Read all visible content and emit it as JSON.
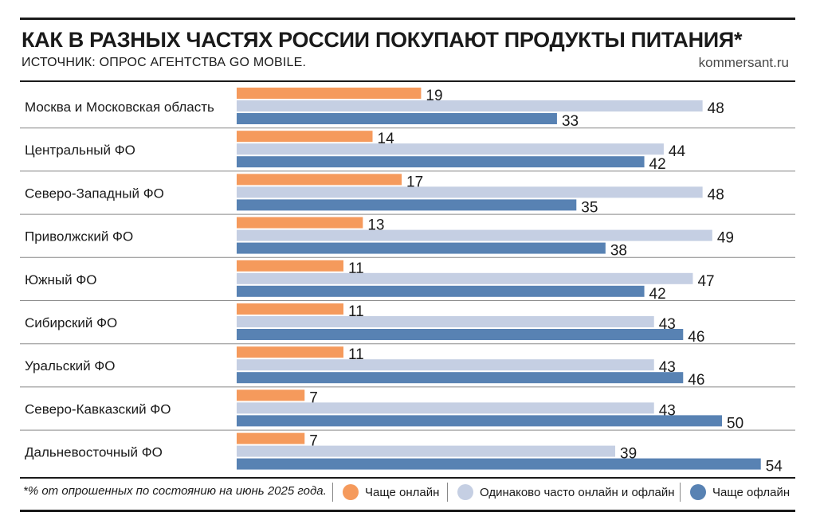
{
  "header": {
    "title": "КАК В РАЗНЫХ ЧАСТЯХ РОССИИ ПОКУПАЮТ ПРОДУКТЫ ПИТАНИЯ*",
    "subtitle": "ИСТОЧНИК: ОПРОС АГЕНТСТВА GO MOBILE.",
    "credit": "kommersant.ru"
  },
  "footer": {
    "footnote": "*% от опрошенных по состоянию на июнь 2025 года."
  },
  "colors": {
    "online": "#f59a5c",
    "equal": "#c5cfe3",
    "offline": "#5882b3"
  },
  "chart_data": {
    "type": "bar",
    "orientation": "horizontal",
    "categories": [
      "Москва и Московская область",
      "Центральный ФО",
      "Северо-Западный ФО",
      "Приволжский ФО",
      "Южный ФО",
      "Сибирский ФО",
      "Уральский ФО",
      "Северо-Кавказский ФО",
      "Дальневосточный ФО"
    ],
    "series": [
      {
        "name": "Чаще онлайн",
        "color": "#f59a5c",
        "values": [
          19,
          14,
          17,
          13,
          11,
          11,
          11,
          7,
          7
        ]
      },
      {
        "name": "Одинаково часто онлайн и офлайн",
        "color": "#c5cfe3",
        "values": [
          48,
          44,
          48,
          49,
          47,
          43,
          43,
          43,
          39
        ]
      },
      {
        "name": "Чаще офлайн",
        "color": "#5882b3",
        "values": [
          33,
          42,
          35,
          38,
          42,
          46,
          46,
          50,
          54
        ]
      }
    ],
    "legend_position": "bottom",
    "grid": false
  }
}
